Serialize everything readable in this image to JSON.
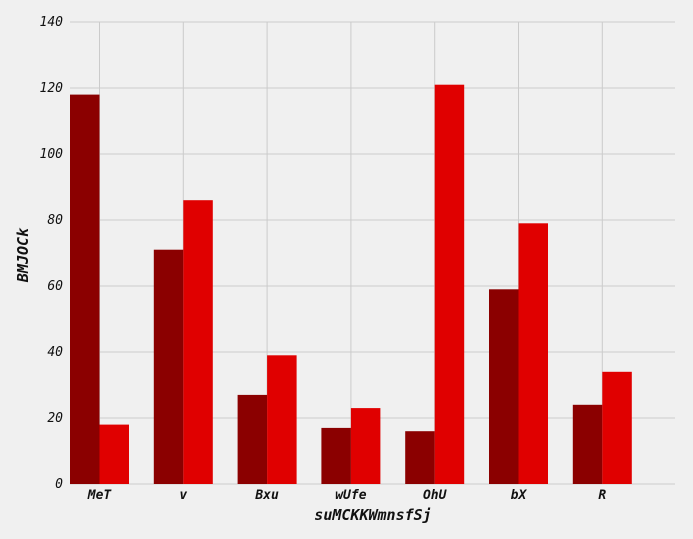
{
  "chart_data": {
    "type": "bar",
    "categories": [
      "MeT",
      "v",
      "Bxu",
      "wUfe",
      "OhU",
      "bX",
      "R"
    ],
    "series": [
      {
        "values": [
          118,
          71,
          27,
          17,
          16,
          59,
          24
        ],
        "color": "#8b0000"
      },
      {
        "values": [
          18,
          86,
          39,
          23,
          121,
          79,
          34
        ],
        "color": "#e00000"
      }
    ],
    "xlabel": "suMCKKWmnsfSj",
    "ylabel": "BMJOCk",
    "ylim": [
      0,
      140
    ],
    "yticks": [
      0,
      20,
      40,
      60,
      80,
      100,
      120,
      140
    ],
    "grid": true,
    "legend": "none"
  }
}
